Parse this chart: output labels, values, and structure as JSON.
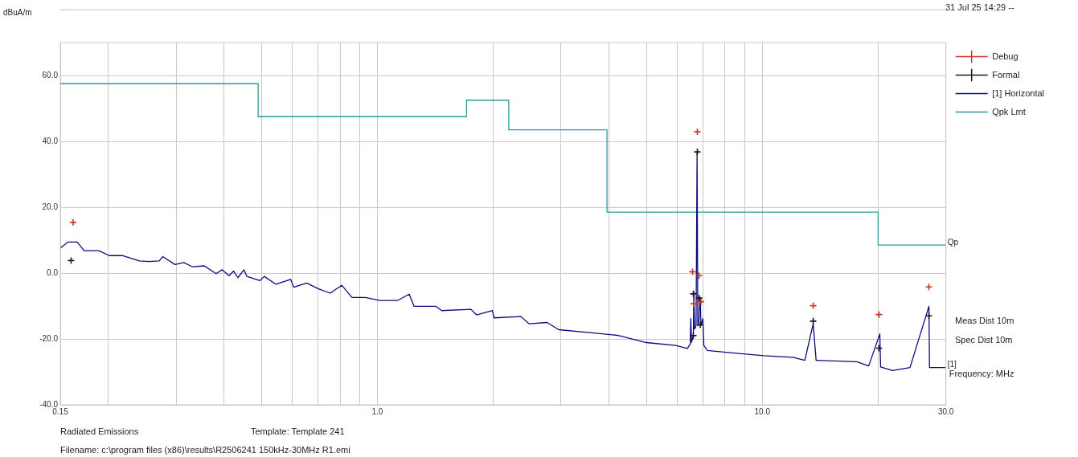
{
  "chart_data": {
    "type": "line",
    "xlabel": "Frequency: MHz",
    "ylabel": "dBuA/m",
    "log": "x",
    "grid": true,
    "legend": "top right",
    "xlim": [
      0.15,
      30
    ],
    "xticks": [
      {
        "value": 0.15,
        "label": "0.15"
      },
      {
        "value": 0.2,
        "label": null
      },
      {
        "value": 0.3,
        "label": null
      },
      {
        "value": 0.4,
        "label": null
      },
      {
        "value": 0.5,
        "label": null
      },
      {
        "value": 0.6,
        "label": null
      },
      {
        "value": 0.7,
        "label": null
      },
      {
        "value": 0.8,
        "label": null
      },
      {
        "value": 0.9,
        "label": null
      },
      {
        "value": 1,
        "label": "1.0"
      },
      {
        "value": 2,
        "label": null
      },
      {
        "value": 3,
        "label": null
      },
      {
        "value": 4,
        "label": null
      },
      {
        "value": 5,
        "label": null
      },
      {
        "value": 6,
        "label": null
      },
      {
        "value": 7,
        "label": null
      },
      {
        "value": 8,
        "label": null
      },
      {
        "value": 9,
        "label": null
      },
      {
        "value": 10,
        "label": "10.0"
      },
      {
        "value": 20,
        "label": null
      },
      {
        "value": 30,
        "label": "30.0"
      }
    ],
    "ylim": [
      -40,
      70
    ],
    "yticks": [
      {
        "value": -40,
        "label": "-40.0"
      },
      {
        "value": -20,
        "label": "-20.0"
      },
      {
        "value": 0,
        "label": "0.0"
      },
      {
        "value": 20,
        "label": "20.0"
      },
      {
        "value": 40,
        "label": "40.0"
      },
      {
        "value": 60,
        "label": "60.0"
      }
    ],
    "series": [
      {
        "name": "[1] Horizontal",
        "type": "line",
        "marker": "none",
        "color": "#0a0a80",
        "x": [
          0.15,
          0.157,
          0.166,
          0.173,
          0.189,
          0.201,
          0.218,
          0.241,
          0.255,
          0.271,
          0.277,
          0.298,
          0.314,
          0.331,
          0.355,
          0.381,
          0.395,
          0.412,
          0.423,
          0.434,
          0.45,
          0.458,
          0.495,
          0.508,
          0.545,
          0.595,
          0.606,
          0.655,
          0.703,
          0.754,
          0.808,
          0.859,
          0.93,
          1.015,
          1.13,
          1.21,
          1.245,
          1.42,
          1.47,
          1.75,
          1.81,
          1.99,
          2.01,
          2.36,
          2.48,
          2.76,
          2.96,
          3.52,
          4.2,
          5.0,
          5.96,
          6.39,
          6.5,
          6.52,
          6.55,
          6.62,
          6.64,
          6.67,
          6.73,
          6.77,
          6.8,
          6.85,
          6.88,
          6.9,
          6.93,
          7.01,
          7.05,
          7.2,
          8.47,
          10.1,
          12.0,
          12.9,
          13.56,
          13.8,
          17.6,
          18.9,
          20.2,
          20.3,
          21.8,
          24.2,
          27.1,
          27.2,
          30
        ],
        "values": [
          7.6,
          9.4,
          9.4,
          6.8,
          6.8,
          5.3,
          5.3,
          3.7,
          3.5,
          3.7,
          5.0,
          2.6,
          3.2,
          1.9,
          2.2,
          -0.2,
          1.0,
          -0.8,
          0.6,
          -1.4,
          1.0,
          -1.0,
          -2.3,
          -1.0,
          -3.4,
          -1.9,
          -4.3,
          -3.0,
          -4.8,
          -6.1,
          -3.7,
          -7.4,
          -7.4,
          -8.3,
          -8.3,
          -6.4,
          -10.1,
          -10.1,
          -11.4,
          -11.0,
          -12.7,
          -11.4,
          -13.6,
          -13.2,
          -15.4,
          -15.0,
          -17.2,
          -18.0,
          -18.9,
          -21.1,
          -22.0,
          -22.9,
          -21.5,
          -13.8,
          -21,
          -19,
          -5.7,
          -17,
          -16,
          36.7,
          -16,
          -14,
          -9,
          -7.3,
          -16,
          -13.8,
          -22,
          -23.5,
          -24.3,
          -25.1,
          -25.6,
          -26.5,
          -15.4,
          -26.5,
          -26.9,
          -28.2,
          -18.5,
          -28.5,
          -29.6,
          -28.7,
          -10.1,
          -28.7,
          -28.7
        ]
      },
      {
        "name": "Qpk Lmt",
        "type": "step",
        "marker": "none",
        "color": "#2a9a9a",
        "x": [
          0.15,
          0.49,
          1.705,
          2.194,
          3.95,
          20,
          30
        ],
        "values": [
          57.5,
          47.5,
          52.5,
          43.5,
          18.5,
          8.5,
          8.5
        ]
      },
      {
        "name": "Debug",
        "type": "scatter",
        "marker": "cross",
        "color": "#cc3322",
        "x": [
          0.162,
          6.59,
          6.64,
          6.78,
          6.85,
          6.93,
          13.56,
          20.1,
          27.1
        ],
        "values": [
          15.4,
          0.4,
          -9.3,
          42.9,
          -0.8,
          -8.7,
          -9.9,
          -12.6,
          -4.2
        ]
      },
      {
        "name": "Formal",
        "type": "scatter",
        "marker": "cross",
        "color": "#1a1a1a",
        "x": [
          0.16,
          6.62,
          6.62,
          6.78,
          6.85,
          6.9,
          13.56,
          20.1,
          27.1
        ],
        "values": [
          3.8,
          -6.3,
          -19,
          36.8,
          -7.6,
          -15.7,
          -14.6,
          -22.8,
          -13.0
        ]
      }
    ],
    "annotations": [
      {
        "text": "Qp",
        "x": 30,
        "y": 8.5
      },
      {
        "text": "[1]",
        "x": 30,
        "y": -28.7
      },
      "31 Jul 25 14:29 --",
      "Meas Dist 10m",
      "Spec Dist 10m",
      "Radiated Emissions",
      "Template: Template 241",
      "Filename: c:\\program files (x86)\\results\\R2506241 150kHz-30MHz R1.emi"
    ]
  }
}
